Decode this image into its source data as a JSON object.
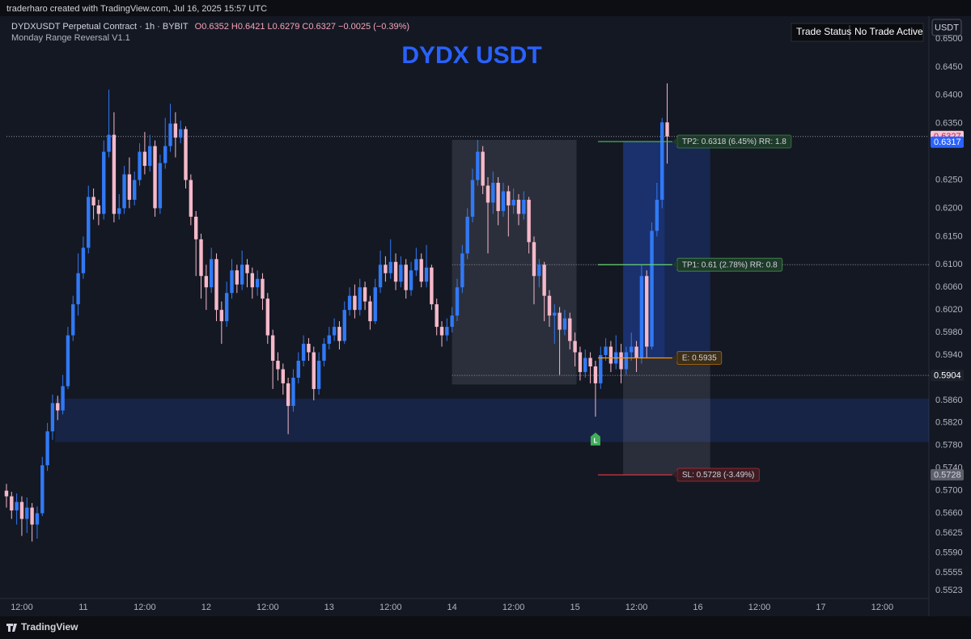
{
  "header": "traderharo created with TradingView.com, Jul 16, 2025 15:57 UTC",
  "footer": "TradingView",
  "chart_data": {
    "type": "candlestick",
    "title": "DYDX USDT",
    "symbol": "DYDXUSDT Perpetual Contract · 1h · BYBIT",
    "ohlc_text": "O0.6352 H0.6421 L0.6279 C0.6327 −0.0025 (−0.39%)",
    "indicator": "Monday Range Reversal V1.1",
    "currency": "USDT",
    "trade_status": {
      "label": "Trade Status",
      "value": "No Trade Active"
    },
    "up_color": "#3179f5",
    "down_color": "#f5b9c9",
    "open": [
      0.57,
      0.569,
      0.5665,
      0.568,
      0.565,
      0.567,
      0.564,
      0.566,
      0.5745,
      0.5805,
      0.5855,
      0.5842,
      0.5885,
      0.5975,
      0.603,
      0.6085,
      0.613,
      0.622,
      0.6205,
      0.619,
      0.63,
      0.633,
      0.619,
      0.62,
      0.626,
      0.6215,
      0.625,
      0.63,
      0.6275,
      0.631,
      0.62,
      0.628,
      0.631,
      0.635,
      0.6325,
      0.634,
      0.625,
      0.6185,
      0.6145,
      0.608,
      0.606,
      0.611,
      0.602,
      0.6,
      0.605,
      0.609,
      0.6065,
      0.61,
      0.6085,
      0.606,
      0.6075,
      0.604,
      0.5975,
      0.593,
      0.5915,
      0.589,
      0.585,
      0.59,
      0.593,
      0.596,
      0.5945,
      0.588,
      0.593,
      0.596,
      0.5975,
      0.599,
      0.5965,
      0.602,
      0.6045,
      0.602,
      0.606,
      0.6035,
      0.6,
      0.606,
      0.61,
      0.6085,
      0.6105,
      0.607,
      0.61,
      0.6055,
      0.609,
      0.611,
      0.607,
      0.6095,
      0.603,
      0.599,
      0.5975,
      0.599,
      0.601,
      0.606,
      0.612,
      0.6185,
      0.625,
      0.63,
      0.624,
      0.621,
      0.6245,
      0.6195,
      0.623,
      0.6205,
      0.6215,
      0.619,
      0.6215,
      0.614,
      0.608,
      0.61,
      0.6045,
      0.601,
      0.6015,
      0.5985,
      0.6005,
      0.5965,
      0.5945,
      0.591,
      0.5935,
      0.592,
      0.589,
      0.594,
      0.5955,
      0.5925,
      0.5945,
      0.5915,
      0.5945,
      0.5955,
      0.5935,
      0.608,
      0.5955,
      0.616,
      0.6215,
      0.6352
    ],
    "high": [
      0.5712,
      0.5698,
      0.5695,
      0.569,
      0.5688,
      0.5678,
      0.5672,
      0.576,
      0.582,
      0.587,
      0.5868,
      0.5905,
      0.599,
      0.6045,
      0.612,
      0.615,
      0.624,
      0.6235,
      0.6215,
      0.632,
      0.641,
      0.637,
      0.6225,
      0.6275,
      0.629,
      0.6265,
      0.6315,
      0.6335,
      0.633,
      0.632,
      0.6295,
      0.636,
      0.6385,
      0.637,
      0.6355,
      0.6345,
      0.626,
      0.6195,
      0.6155,
      0.61,
      0.613,
      0.612,
      0.6035,
      0.607,
      0.611,
      0.61,
      0.6125,
      0.611,
      0.6095,
      0.609,
      0.6085,
      0.605,
      0.5985,
      0.5945,
      0.5925,
      0.59,
      0.5915,
      0.5945,
      0.5975,
      0.597,
      0.5955,
      0.5945,
      0.597,
      0.599,
      0.6005,
      0.6,
      0.6035,
      0.606,
      0.6065,
      0.6075,
      0.607,
      0.6045,
      0.6075,
      0.6125,
      0.6115,
      0.6145,
      0.612,
      0.6115,
      0.611,
      0.6105,
      0.613,
      0.612,
      0.6135,
      0.61,
      0.604,
      0.6,
      0.6005,
      0.6025,
      0.6075,
      0.6135,
      0.62,
      0.627,
      0.6321,
      0.631,
      0.6255,
      0.6265,
      0.6255,
      0.6245,
      0.624,
      0.6235,
      0.6225,
      0.623,
      0.622,
      0.615,
      0.611,
      0.6105,
      0.6055,
      0.603,
      0.6025,
      0.602,
      0.6015,
      0.598,
      0.5955,
      0.595,
      0.5945,
      0.593,
      0.5955,
      0.597,
      0.5965,
      0.5975,
      0.596,
      0.5955,
      0.598,
      0.5965,
      0.61,
      0.609,
      0.6175,
      0.6245,
      0.636,
      0.6421
    ],
    "low": [
      0.567,
      0.565,
      0.564,
      0.562,
      0.5625,
      0.561,
      0.5615,
      0.5655,
      0.5735,
      0.579,
      0.5825,
      0.5835,
      0.588,
      0.5965,
      0.601,
      0.6075,
      0.612,
      0.618,
      0.617,
      0.618,
      0.629,
      0.6175,
      0.618,
      0.619,
      0.62,
      0.6205,
      0.624,
      0.626,
      0.6265,
      0.6185,
      0.619,
      0.627,
      0.63,
      0.629,
      0.6315,
      0.6235,
      0.617,
      0.608,
      0.604,
      0.602,
      0.605,
      0.6,
      0.596,
      0.599,
      0.604,
      0.605,
      0.6055,
      0.606,
      0.604,
      0.6045,
      0.602,
      0.596,
      0.588,
      0.5895,
      0.587,
      0.58,
      0.584,
      0.589,
      0.592,
      0.593,
      0.586,
      0.587,
      0.592,
      0.595,
      0.5965,
      0.595,
      0.596,
      0.601,
      0.6005,
      0.601,
      0.602,
      0.5985,
      0.5995,
      0.605,
      0.607,
      0.6075,
      0.6055,
      0.606,
      0.604,
      0.6045,
      0.608,
      0.606,
      0.606,
      0.602,
      0.5975,
      0.5955,
      0.5965,
      0.598,
      0.6,
      0.605,
      0.611,
      0.6175,
      0.624,
      0.6225,
      0.612,
      0.619,
      0.617,
      0.6185,
      0.615,
      0.619,
      0.617,
      0.618,
      0.612,
      0.603,
      0.606,
      0.6,
      0.599,
      0.596,
      0.5905,
      0.5975,
      0.595,
      0.592,
      0.5895,
      0.59,
      0.589,
      0.5831,
      0.588,
      0.593,
      0.591,
      0.5915,
      0.589,
      0.5905,
      0.593,
      0.591,
      0.5925,
      0.5935,
      0.595,
      0.615,
      0.62,
      0.6279
    ],
    "close": [
      0.569,
      0.5665,
      0.568,
      0.565,
      0.567,
      0.564,
      0.566,
      0.5745,
      0.5805,
      0.5855,
      0.5842,
      0.5885,
      0.5975,
      0.603,
      0.6085,
      0.613,
      0.622,
      0.6205,
      0.619,
      0.63,
      0.633,
      0.619,
      0.62,
      0.626,
      0.6215,
      0.625,
      0.63,
      0.6275,
      0.631,
      0.62,
      0.628,
      0.631,
      0.635,
      0.6325,
      0.634,
      0.625,
      0.6185,
      0.6145,
      0.608,
      0.606,
      0.611,
      0.602,
      0.6,
      0.605,
      0.609,
      0.6065,
      0.61,
      0.6085,
      0.606,
      0.6075,
      0.604,
      0.5975,
      0.593,
      0.5915,
      0.589,
      0.585,
      0.59,
      0.593,
      0.596,
      0.5945,
      0.588,
      0.593,
      0.596,
      0.5975,
      0.599,
      0.5965,
      0.602,
      0.6045,
      0.602,
      0.606,
      0.6035,
      0.6,
      0.606,
      0.61,
      0.6085,
      0.6105,
      0.607,
      0.61,
      0.6055,
      0.609,
      0.611,
      0.607,
      0.6095,
      0.603,
      0.599,
      0.5975,
      0.599,
      0.601,
      0.606,
      0.612,
      0.6185,
      0.625,
      0.63,
      0.624,
      0.621,
      0.6245,
      0.6195,
      0.623,
      0.6205,
      0.6215,
      0.619,
      0.6215,
      0.614,
      0.608,
      0.61,
      0.6045,
      0.601,
      0.6015,
      0.5985,
      0.6005,
      0.5965,
      0.5945,
      0.591,
      0.5935,
      0.592,
      0.589,
      0.594,
      0.5955,
      0.5925,
      0.5945,
      0.5915,
      0.5945,
      0.5955,
      0.5935,
      0.608,
      0.5955,
      0.616,
      0.6215,
      0.6352,
      0.6327
    ],
    "xlim": [
      -1.26,
      180.1
    ],
    "xticks": [
      {
        "value": 3,
        "label": "12:00"
      },
      {
        "value": 15,
        "label": "11"
      },
      {
        "value": 27,
        "label": "12:00"
      },
      {
        "value": 39,
        "label": "12"
      },
      {
        "value": 51,
        "label": "12:00"
      },
      {
        "value": 63,
        "label": "13"
      },
      {
        "value": 75,
        "label": "12:00"
      },
      {
        "value": 87,
        "label": "14"
      },
      {
        "value": 99,
        "label": "12:00"
      },
      {
        "value": 111,
        "label": "15"
      },
      {
        "value": 123,
        "label": "12:00"
      },
      {
        "value": 135,
        "label": "16"
      },
      {
        "value": 147,
        "label": "12:00"
      },
      {
        "value": 159,
        "label": "17"
      },
      {
        "value": 171,
        "label": "12:00"
      }
    ],
    "ylim": [
      0.5509,
      0.654
    ],
    "yticks": [
      {
        "value": 0.65,
        "label": "0.6500"
      },
      {
        "value": 0.645,
        "label": "0.6450"
      },
      {
        "value": 0.64,
        "label": "0.6400"
      },
      {
        "value": 0.635,
        "label": "0.6350"
      },
      {
        "value": 0.625,
        "label": "0.6250"
      },
      {
        "value": 0.62,
        "label": "0.6200"
      },
      {
        "value": 0.615,
        "label": "0.6150"
      },
      {
        "value": 0.61,
        "label": "0.6100"
      },
      {
        "value": 0.606,
        "label": "0.6060"
      },
      {
        "value": 0.602,
        "label": "0.6020"
      },
      {
        "value": 0.598,
        "label": "0.5980"
      },
      {
        "value": 0.594,
        "label": "0.5940"
      },
      {
        "value": 0.586,
        "label": "0.5860"
      },
      {
        "value": 0.582,
        "label": "0.5820"
      },
      {
        "value": 0.578,
        "label": "0.5780"
      },
      {
        "value": 0.574,
        "label": "0.5740"
      },
      {
        "value": 0.57,
        "label": "0.5700"
      },
      {
        "value": 0.566,
        "label": "0.5660"
      },
      {
        "value": 0.5625,
        "label": "0.5625"
      },
      {
        "value": 0.559,
        "label": "0.5590"
      },
      {
        "value": 0.5555,
        "label": "0.5555"
      },
      {
        "value": 0.5523,
        "label": "0.5523"
      }
    ],
    "grid": false,
    "boxes": [
      {
        "x": [
          9.5,
          180.1
        ],
        "y": [
          0.5786,
          0.5863
        ],
        "color": "rgba(41,98,255,0.16)"
      },
      {
        "x": [
          87,
          111.3
        ],
        "y": [
          0.5888,
          0.6321
        ],
        "color": "rgba(200,205,225,0.13)"
      },
      {
        "x": [
          120.4,
          137.4
        ],
        "y": [
          0.5935,
          0.6318
        ],
        "color": "rgba(41,98,255,0.2)"
      },
      {
        "x": [
          120.4,
          128.5
        ],
        "y": [
          0.5935,
          0.6318
        ],
        "color": "rgba(41,98,255,0.18)"
      },
      {
        "x": [
          120.4,
          137.4
        ],
        "y": [
          0.5728,
          0.5935
        ],
        "color": "rgba(190,195,215,0.13)"
      }
    ],
    "dotted_lines": [
      {
        "value": 0.6327,
        "start": 0
      },
      {
        "value": 0.61,
        "start": 87
      },
      {
        "value": 0.5904,
        "start": 87
      }
    ],
    "levels": [
      {
        "label": "TP2: 0.6318 (6.45%) RR: 1.8",
        "value": 0.6318,
        "start": 115.5,
        "end": 130,
        "color": "#4caf50",
        "bg": "#1e3a2a"
      },
      {
        "label": "TP1: 0.61 (2.78%) RR: 0.8",
        "value": 0.61,
        "start": 115.5,
        "end": 130,
        "color": "#66d36e",
        "bg": "#1e3a2a"
      },
      {
        "label": "E: 0.5935",
        "value": 0.5935,
        "start": 115.5,
        "end": 130,
        "color": "#ff9800",
        "bg": "#3d2e17"
      },
      {
        "label": "SL: 0.5728 (-3.49%)",
        "value": 0.5728,
        "start": 115.5,
        "end": 130,
        "color": "#f23645",
        "bg": "#3d1c22"
      }
    ],
    "markers": [
      {
        "text": "L",
        "x": 115,
        "value": 0.579,
        "color": "#3fae5a"
      }
    ],
    "price_tags": [
      {
        "value": 0.6327,
        "label": "0.6327",
        "bg": "#f7c6d2",
        "fg": "#c2185b"
      },
      {
        "value": 0.6317,
        "label": "0.6317",
        "bg": "#2962ff",
        "fg": "#ffffff"
      },
      {
        "value": 0.5904,
        "label": "0.5904",
        "bg": "#1e222d",
        "fg": "#ffffff"
      },
      {
        "value": 0.5728,
        "label": "0.5728",
        "bg": "#5d606b",
        "fg": "#d1d4dc"
      }
    ]
  }
}
